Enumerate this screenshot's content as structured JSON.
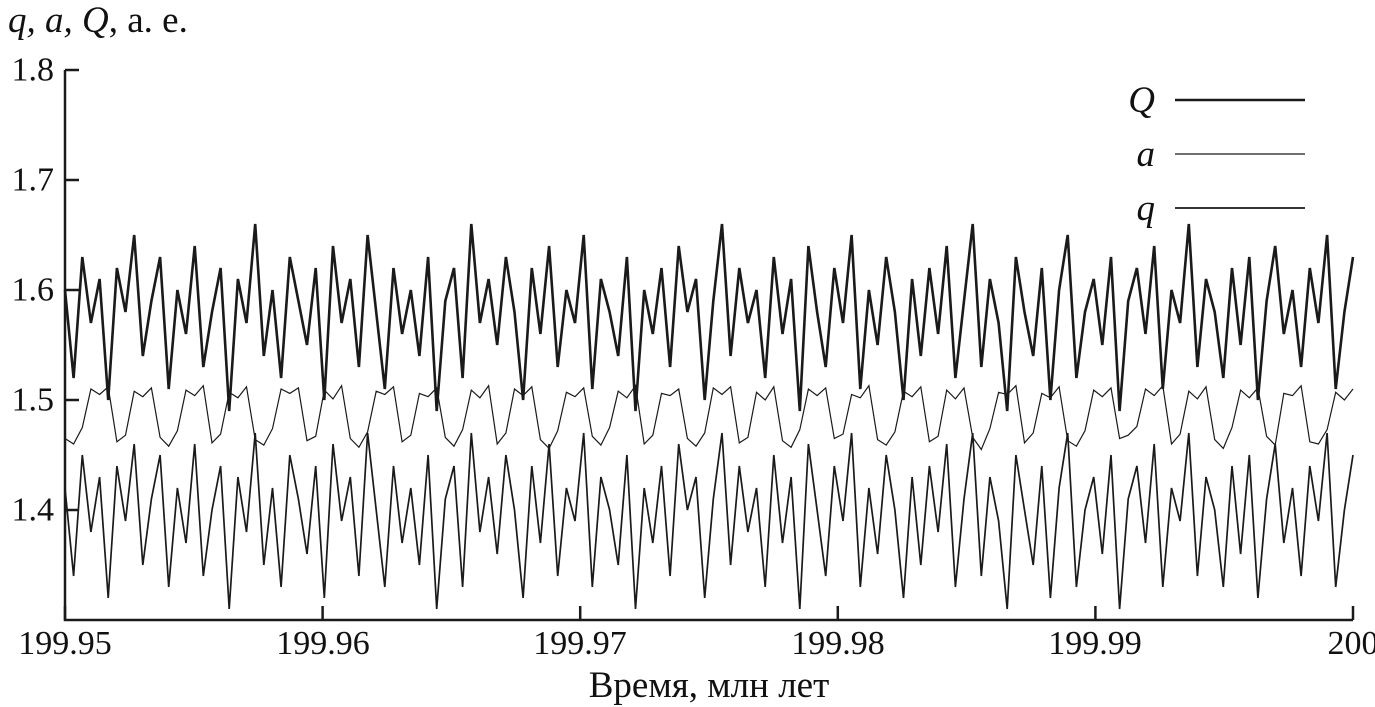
{
  "chart_data": {
    "type": "line",
    "title": "",
    "ylabel": "q, a, Q, а. е.",
    "ylabel_italic_part": "q, a, Q",
    "ylabel_roman_part": ", а. е.",
    "xlabel": "Время, млн лет",
    "x_range": [
      199.95,
      200.0
    ],
    "y_range": [
      1.3,
      1.8
    ],
    "x_ticks": [
      199.95,
      199.96,
      199.97,
      199.98,
      199.99,
      200
    ],
    "x_tick_labels": [
      "199.95",
      "199.96",
      "199.97",
      "199.98",
      "199.99",
      "200"
    ],
    "y_ticks": [
      1.4,
      1.5,
      1.6,
      1.7,
      1.8
    ],
    "y_tick_labels": [
      "1.4",
      "1.5",
      "1.6",
      "1.7",
      "1.8"
    ],
    "grid": false,
    "legend_position": "top-right",
    "background": "#ffffff",
    "line_color": "#1a1a1a",
    "x_sampling": {
      "start": 199.95,
      "end": 200.0,
      "n_points": 150,
      "spacing": "uniform"
    },
    "series": [
      {
        "name": "Q",
        "stroke_width_px": 2.6,
        "mean": 1.58,
        "min": 1.49,
        "max": 1.66,
        "values": [
          1.6,
          1.52,
          1.63,
          1.57,
          1.61,
          1.5,
          1.62,
          1.58,
          1.65,
          1.54,
          1.59,
          1.63,
          1.51,
          1.6,
          1.56,
          1.64,
          1.53,
          1.58,
          1.62,
          1.49,
          1.61,
          1.57,
          1.66,
          1.54,
          1.6,
          1.52,
          1.63,
          1.59,
          1.55,
          1.62,
          1.5,
          1.64,
          1.57,
          1.61,
          1.53,
          1.65,
          1.58,
          1.51,
          1.62,
          1.56,
          1.6,
          1.54,
          1.63,
          1.49,
          1.59,
          1.62,
          1.52,
          1.66,
          1.57,
          1.61,
          1.55,
          1.63,
          1.58,
          1.5,
          1.62,
          1.56,
          1.64,
          1.53,
          1.6,
          1.57,
          1.65,
          1.51,
          1.61,
          1.58,
          1.54,
          1.63,
          1.49,
          1.6,
          1.56,
          1.62,
          1.53,
          1.64,
          1.58,
          1.61,
          1.5,
          1.59,
          1.66,
          1.54,
          1.62,
          1.57,
          1.6,
          1.52,
          1.63,
          1.56,
          1.61,
          1.49,
          1.64,
          1.58,
          1.53,
          1.62,
          1.57,
          1.65,
          1.51,
          1.6,
          1.55,
          1.63,
          1.58,
          1.5,
          1.61,
          1.54,
          1.62,
          1.56,
          1.64,
          1.52,
          1.59,
          1.66,
          1.53,
          1.61,
          1.57,
          1.49,
          1.63,
          1.58,
          1.54,
          1.62,
          1.5,
          1.6,
          1.65,
          1.52,
          1.58,
          1.61,
          1.55,
          1.63,
          1.49,
          1.59,
          1.62,
          1.56,
          1.64,
          1.51,
          1.6,
          1.57,
          1.66,
          1.53,
          1.61,
          1.58,
          1.52,
          1.62,
          1.55,
          1.63,
          1.5,
          1.59,
          1.64,
          1.56,
          1.6,
          1.53,
          1.62,
          1.57,
          1.65,
          1.51,
          1.58,
          1.63
        ]
      },
      {
        "name": "a",
        "stroke_width_px": 1.2,
        "mean": 1.485,
        "min": 1.455,
        "max": 1.513,
        "values": [
          1.465,
          1.46,
          1.475,
          1.51,
          1.505,
          1.512,
          1.462,
          1.468,
          1.508,
          1.503,
          1.511,
          1.466,
          1.458,
          1.472,
          1.509,
          1.504,
          1.513,
          1.461,
          1.469,
          1.507,
          1.502,
          1.512,
          1.464,
          1.459,
          1.474,
          1.51,
          1.506,
          1.511,
          1.463,
          1.467,
          1.509,
          1.501,
          1.513,
          1.465,
          1.457,
          1.471,
          1.508,
          1.505,
          1.512,
          1.462,
          1.468,
          1.506,
          1.503,
          1.511,
          1.466,
          1.458,
          1.473,
          1.509,
          1.502,
          1.513,
          1.46,
          1.47,
          1.51,
          1.504,
          1.512,
          1.464,
          1.456,
          1.472,
          1.507,
          1.503,
          1.511,
          1.467,
          1.459,
          1.475,
          1.508,
          1.502,
          1.513,
          1.46,
          1.468,
          1.506,
          1.504,
          1.51,
          1.465,
          1.458,
          1.47,
          1.511,
          1.505,
          1.512,
          1.461,
          1.466,
          1.507,
          1.5,
          1.512,
          1.463,
          1.457,
          1.473,
          1.51,
          1.504,
          1.511,
          1.465,
          1.469,
          1.505,
          1.502,
          1.513,
          1.464,
          1.459,
          1.471,
          1.508,
          1.503,
          1.512,
          1.462,
          1.467,
          1.509,
          1.501,
          1.511,
          1.466,
          1.455,
          1.474,
          1.507,
          1.505,
          1.513,
          1.461,
          1.47,
          1.506,
          1.502,
          1.512,
          1.463,
          1.458,
          1.472,
          1.509,
          1.503,
          1.511,
          1.465,
          1.468,
          1.476,
          1.51,
          1.504,
          1.513,
          1.46,
          1.469,
          1.508,
          1.501,
          1.512,
          1.464,
          1.456,
          1.475,
          1.509,
          1.502,
          1.511,
          1.467,
          1.459,
          1.506,
          1.504,
          1.513,
          1.462,
          1.46,
          1.473,
          1.507,
          1.5,
          1.51
        ]
      },
      {
        "name": "q",
        "stroke_width_px": 1.7,
        "mean": 1.39,
        "min": 1.31,
        "max": 1.47,
        "values": [
          1.42,
          1.34,
          1.45,
          1.38,
          1.43,
          1.32,
          1.44,
          1.39,
          1.46,
          1.35,
          1.41,
          1.45,
          1.33,
          1.42,
          1.37,
          1.46,
          1.34,
          1.4,
          1.44,
          1.31,
          1.43,
          1.38,
          1.47,
          1.35,
          1.42,
          1.33,
          1.45,
          1.41,
          1.36,
          1.44,
          1.32,
          1.46,
          1.39,
          1.43,
          1.34,
          1.47,
          1.4,
          1.33,
          1.44,
          1.37,
          1.42,
          1.35,
          1.45,
          1.31,
          1.41,
          1.44,
          1.33,
          1.47,
          1.38,
          1.43,
          1.36,
          1.45,
          1.4,
          1.32,
          1.44,
          1.37,
          1.46,
          1.34,
          1.42,
          1.39,
          1.47,
          1.33,
          1.43,
          1.4,
          1.35,
          1.45,
          1.31,
          1.42,
          1.37,
          1.44,
          1.34,
          1.46,
          1.4,
          1.43,
          1.32,
          1.41,
          1.47,
          1.35,
          1.44,
          1.38,
          1.42,
          1.33,
          1.45,
          1.37,
          1.43,
          1.31,
          1.46,
          1.4,
          1.34,
          1.44,
          1.39,
          1.47,
          1.33,
          1.42,
          1.36,
          1.45,
          1.4,
          1.32,
          1.43,
          1.35,
          1.44,
          1.38,
          1.46,
          1.33,
          1.41,
          1.47,
          1.34,
          1.43,
          1.39,
          1.31,
          1.45,
          1.4,
          1.35,
          1.44,
          1.32,
          1.42,
          1.47,
          1.33,
          1.4,
          1.43,
          1.36,
          1.45,
          1.31,
          1.41,
          1.44,
          1.37,
          1.46,
          1.33,
          1.42,
          1.39,
          1.47,
          1.34,
          1.43,
          1.4,
          1.33,
          1.44,
          1.36,
          1.45,
          1.32,
          1.41,
          1.46,
          1.37,
          1.42,
          1.34,
          1.44,
          1.39,
          1.47,
          1.33,
          1.4,
          1.45
        ]
      }
    ]
  }
}
